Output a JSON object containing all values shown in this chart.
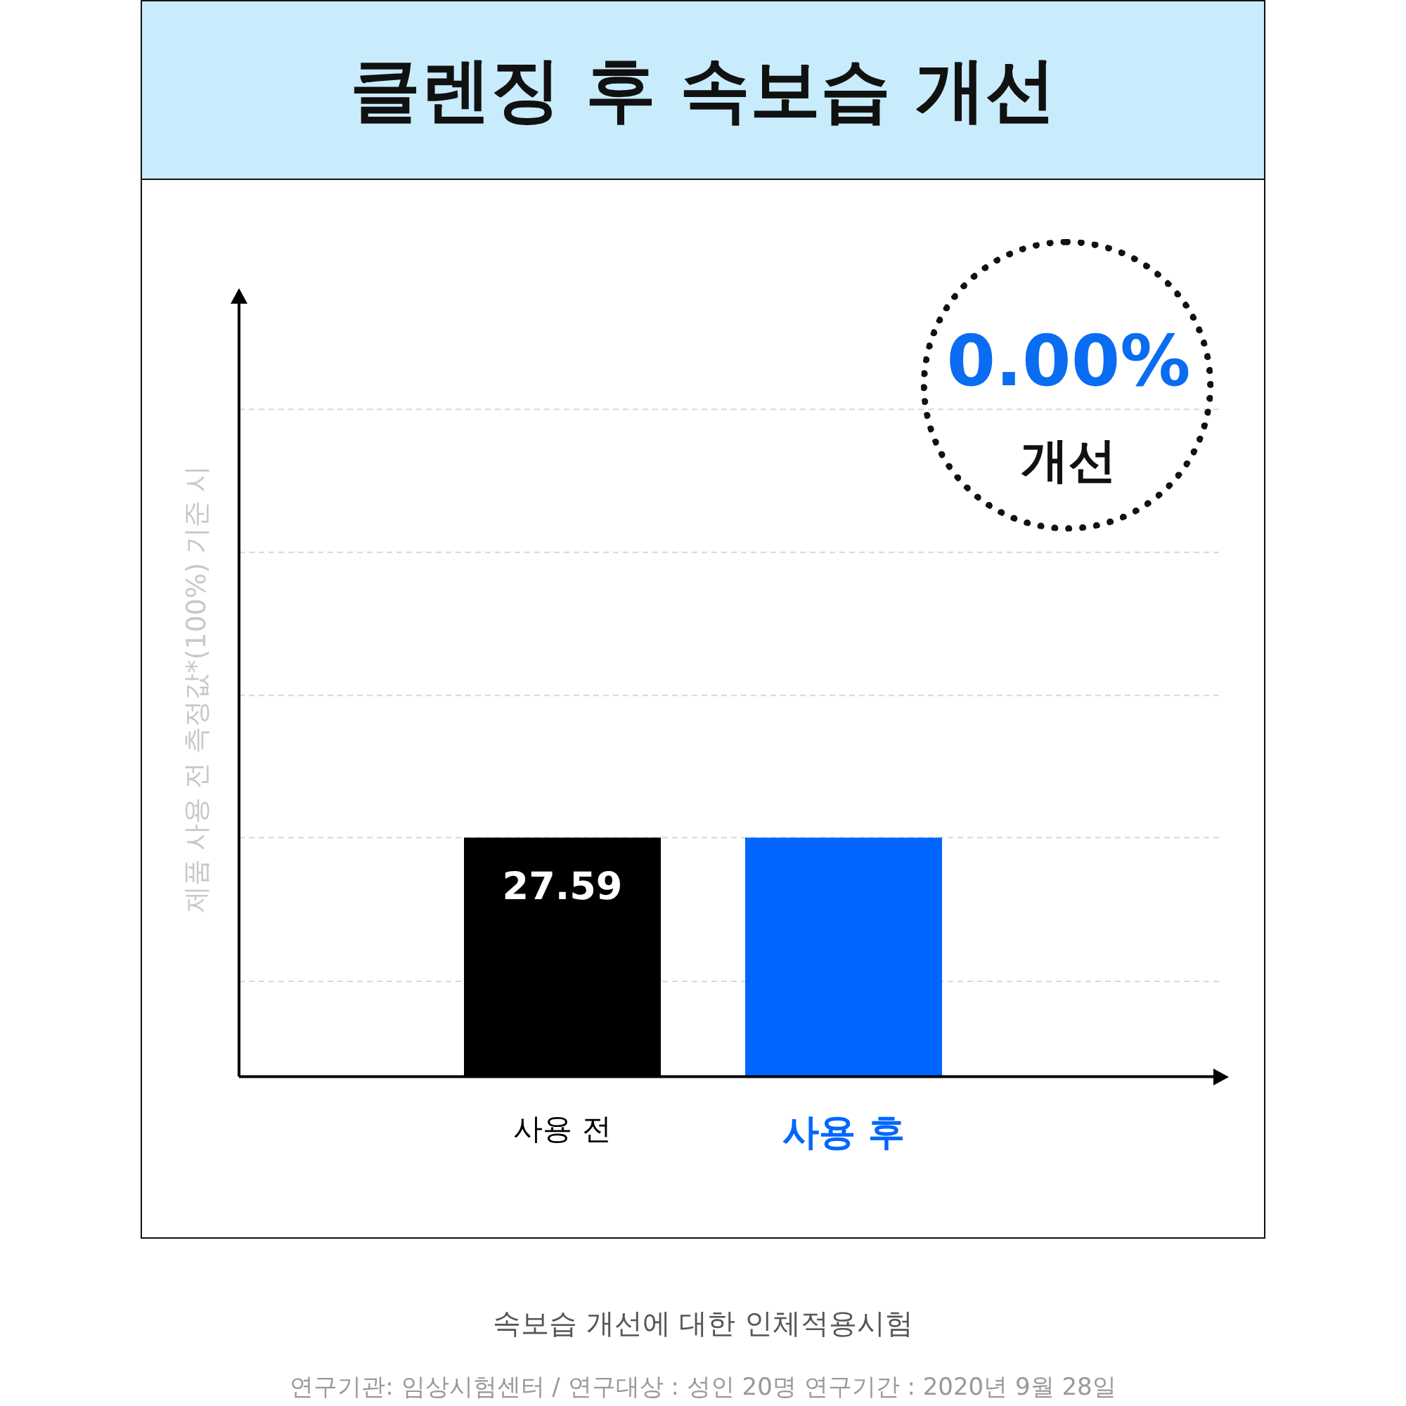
{
  "chart_data": {
    "type": "bar",
    "title": "클렌징 후 속보습 개선",
    "ylabel": "제품 사용 전 측정값*(100%) 기준 시",
    "categories": [
      "사용 전",
      "사용 후"
    ],
    "values": [
      27.59,
      27.59
    ],
    "colors": [
      "#000000",
      "#0066ff"
    ],
    "value_labels": [
      "27.59",
      null
    ],
    "ylim": [
      0,
      90
    ],
    "yticks": [
      {
        "value": 11,
        "label": null
      },
      {
        "value": 27.59,
        "label": null
      },
      {
        "value": 44,
        "label": null
      },
      {
        "value": 60.5,
        "label": null
      },
      {
        "value": 77,
        "label": null
      }
    ],
    "grid": "y",
    "annotations": [
      "0.00%",
      "개선",
      "속보습 개선에 대한 인체적용시험",
      "연구기관: 임상시험센터 / 연구대상 : 성인 20명 연구기간 : 2020년 9월 28일"
    ]
  }
}
